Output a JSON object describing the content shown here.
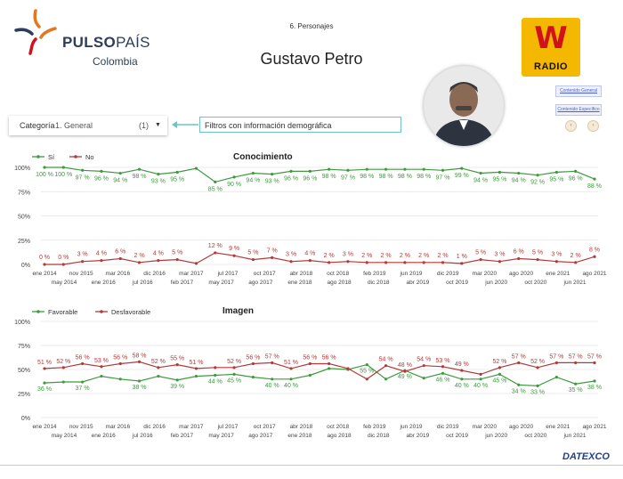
{
  "header": {
    "brand_bold": "PULSO",
    "brand_thin": "PAÍS",
    "brand_sub": "Colombia",
    "section": "6. Personajes",
    "person": "Gustavo Petro",
    "radio_letter": "W",
    "radio_word": "RADIO",
    "link_general": "Contenido General",
    "link_specific": "Contenido Específico"
  },
  "controls": {
    "category_label": "Categoría",
    "category_value": "1. General",
    "category_count": "(1)",
    "filter_text": "Filtros con información demográfica"
  },
  "footer": {
    "company": "DATEXCO"
  },
  "colors": {
    "green": "#3f9a3f",
    "red": "#b23a3a",
    "brand": "#2f3d5c",
    "radio_yellow": "#f5b800",
    "radio_red": "#d0121b",
    "teal": "#6fc3c8"
  },
  "chart_data": [
    {
      "type": "line",
      "title": "Conocimiento",
      "ylim": [
        0,
        100
      ],
      "yticks": [
        "0%",
        "25%",
        "50%",
        "75%",
        "100%"
      ],
      "grid": true,
      "legend": "top-left",
      "x_labels_top": [
        "ene 2014",
        "nov 2015",
        "mar 2016",
        "dic 2016",
        "mar 2017",
        "jul 2017",
        "oct 2017",
        "abr 2018",
        "oct 2018",
        "feb 2019",
        "jun 2019",
        "dic 2019",
        "mar 2020",
        "ago 2020",
        "ene 2021",
        "ago 2021"
      ],
      "x_labels_bottom": [
        "may 2014",
        "ene 2016",
        "jul 2016",
        "feb 2017",
        "may 2017",
        "ago 2017",
        "ene 2018",
        "ago 2018",
        "dic 2018",
        "abr 2019",
        "oct 2019",
        "jun 2020",
        "oct 2020",
        "jun 2021"
      ],
      "series": [
        {
          "name": "Sí",
          "color": "#3f9a3f",
          "values": [
            100,
            100,
            97,
            96,
            94,
            98,
            93,
            95,
            99,
            85,
            90,
            94,
            93,
            96,
            96,
            98,
            97,
            98,
            98,
            98,
            98,
            97,
            99,
            94,
            95,
            94,
            92,
            95,
            96,
            88
          ],
          "labels": [
            "100 %",
            "100 %",
            "97 %",
            "96 %",
            "94 %",
            "98 %",
            "93 %",
            "95 %",
            "",
            "85 %",
            "90 %",
            "94 %",
            "93 %",
            "96 %",
            "96 %",
            "98 %",
            "97 %",
            "98 %",
            "98 %",
            "98 %",
            "98 %",
            "97 %",
            "99 %",
            "94 %",
            "95 %",
            "94 %",
            "92 %",
            "95 %",
            "96 %",
            "88 %"
          ]
        },
        {
          "name": "No",
          "color": "#b23a3a",
          "values": [
            0,
            0,
            3,
            4,
            6,
            2,
            4,
            5,
            1,
            12,
            9,
            5,
            7,
            3,
            4,
            2,
            3,
            2,
            2,
            2,
            2,
            2,
            1,
            5,
            3,
            6,
            5,
            3,
            2,
            8
          ],
          "labels": [
            "0 %",
            "0 %",
            "3 %",
            "4 %",
            "6 %",
            "2 %",
            "4 %",
            "5 %",
            "",
            "12 %",
            "9 %",
            "5 %",
            "7 %",
            "3 %",
            "4 %",
            "2 %",
            "3 %",
            "2 %",
            "2 %",
            "2 %",
            "2 %",
            "2 %",
            "1 %",
            "5 %",
            "3 %",
            "6 %",
            "5 %",
            "3 %",
            "2 %",
            "8 %"
          ]
        }
      ]
    },
    {
      "type": "line",
      "title": "Imagen",
      "ylim": [
        0,
        100
      ],
      "yticks": [
        "0%",
        "25%",
        "50%",
        "75%",
        "100%"
      ],
      "grid": true,
      "legend": "top-left",
      "x_labels_top": [
        "ene 2014",
        "nov 2015",
        "mar 2016",
        "dic 2016",
        "mar 2017",
        "jul 2017",
        "oct 2017",
        "abr 2018",
        "oct 2018",
        "feb 2019",
        "jun 2019",
        "dic 2019",
        "mar 2020",
        "ago 2020",
        "ene 2021",
        "ago 2021"
      ],
      "x_labels_bottom": [
        "may 2014",
        "ene 2016",
        "jul 2016",
        "feb 2017",
        "may 2017",
        "ago 2017",
        "ene 2018",
        "ago 2018",
        "dic 2018",
        "abr 2019",
        "oct 2019",
        "jun 2020",
        "oct 2020",
        "jun 2021"
      ],
      "series": [
        {
          "name": "Favorable",
          "color": "#3f9a3f",
          "values": [
            36,
            37,
            37,
            43,
            40,
            38,
            43,
            39,
            43,
            44,
            45,
            42,
            40,
            40,
            44,
            51,
            50,
            55,
            40,
            49,
            41,
            46,
            40,
            40,
            45,
            34,
            33,
            42,
            35,
            38
          ],
          "labels": [
            "36 %",
            "",
            "37 %",
            "",
            "",
            "38 %",
            "",
            "39 %",
            "",
            "44 %",
            "45 %",
            "",
            "40 %",
            "40 %",
            "",
            "",
            "",
            "55 %",
            "",
            "49 %",
            "",
            "46 %",
            "40 %",
            "40 %",
            "45 %",
            "34 %",
            "33 %",
            "",
            "35 %",
            "38 %"
          ]
        },
        {
          "name": "Desfavorable",
          "color": "#b23a3a",
          "values": [
            51,
            52,
            56,
            53,
            56,
            58,
            52,
            55,
            51,
            52,
            52,
            56,
            57,
            51,
            56,
            56,
            51,
            40,
            54,
            48,
            54,
            53,
            49,
            45,
            52,
            57,
            52,
            57,
            57,
            57
          ],
          "labels": [
            "51 %",
            "52 %",
            "56 %",
            "53 %",
            "56 %",
            "58 %",
            "52 %",
            "55 %",
            "51 %",
            "",
            "52 %",
            "56 %",
            "57 %",
            "51 %",
            "56 %",
            "56 %",
            "",
            "",
            "54 %",
            "48 %",
            "54 %",
            "53 %",
            "49 %",
            "",
            "52 %",
            "57 %",
            "52 %",
            "57 %",
            "57 %",
            "57 %"
          ]
        }
      ]
    }
  ]
}
